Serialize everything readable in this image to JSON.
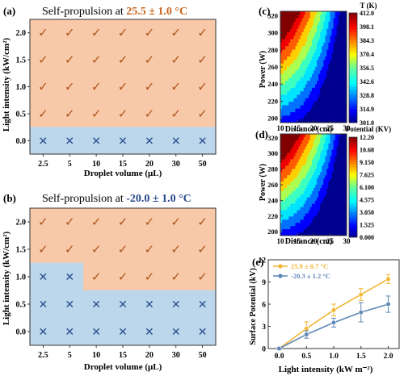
{
  "chart_data": [
    {
      "panel": "(a)",
      "type": "heatmap",
      "title_prefix": "Self-propulsion at ",
      "title_value": "25.5 ± 1.0 °C",
      "xlabel": "Droplet volume (μL)",
      "ylabel": "Light intensity (kW/cm²)",
      "x": [
        "2.5",
        "5",
        "10",
        "15",
        "20",
        "30",
        "50"
      ],
      "y": [
        "0.0",
        "0.5",
        "1.0",
        "1.5",
        "2.0"
      ],
      "outcome": [
        [
          "✕",
          "✕",
          "✕",
          "✕",
          "✕",
          "✕",
          "✕"
        ],
        [
          "✓",
          "✓",
          "✓",
          "✓",
          "✓",
          "✓",
          "✓"
        ],
        [
          "✓",
          "✓",
          "✓",
          "✓",
          "✓",
          "✓",
          "✓"
        ],
        [
          "✓",
          "✓",
          "✓",
          "✓",
          "✓",
          "✓",
          "✓"
        ],
        [
          "✓",
          "✓",
          "✓",
          "✓",
          "✓",
          "✓",
          "✓"
        ]
      ]
    },
    {
      "panel": "(b)",
      "type": "heatmap",
      "title_prefix": "Self-propulsion at ",
      "title_value": "-20.0 ± 1.0 °C",
      "xlabel": "Droplet volume (μL)",
      "ylabel": "Light intensity (kW/cm²)",
      "x": [
        "2.5",
        "5",
        "10",
        "15",
        "20",
        "30",
        "50"
      ],
      "y": [
        "0.0",
        "0.5",
        "1.0",
        "1.5",
        "2.0"
      ],
      "outcome": [
        [
          "✕",
          "✕",
          "✕",
          "✕",
          "✕",
          "✕",
          "✕"
        ],
        [
          "✕",
          "✕",
          "✕",
          "✕",
          "✕",
          "✕",
          "✕"
        ],
        [
          "✕",
          "✕",
          "✓",
          "✓",
          "✓",
          "✓",
          "✓"
        ],
        [
          "✓",
          "✓",
          "✓",
          "✓",
          "✓",
          "✓",
          "✓"
        ],
        [
          "✓",
          "✓",
          "✓",
          "✓",
          "✓",
          "✓",
          "✓"
        ]
      ]
    },
    {
      "panel": "(c)",
      "type": "heatmap",
      "colorbar_title": "T (K)",
      "xlabel": "Distance (cm)",
      "ylabel": "Power (W)",
      "xticks": [
        "10",
        "15",
        "20",
        "25",
        "30"
      ],
      "yticks": [
        "200",
        "220",
        "240",
        "260",
        "280",
        "300",
        "320"
      ],
      "xlim": [
        10,
        30
      ],
      "ylim": [
        195,
        325
      ],
      "colorbar_ticks": [
        "412.0",
        "398.1",
        "384.3",
        "370.4",
        "356.5",
        "342.6",
        "328.8",
        "314.9",
        "301.0"
      ],
      "range": [
        301.0,
        412.0
      ]
    },
    {
      "panel": "(d)",
      "type": "heatmap",
      "colorbar_title": "Potential (KV)",
      "xlabel": "Distance (cm)",
      "ylabel": "Power (W)",
      "xticks": [
        "10",
        "15",
        "20",
        "25",
        "30"
      ],
      "yticks": [
        "200",
        "220",
        "240",
        "260",
        "280",
        "300",
        "320"
      ],
      "xlim": [
        10,
        30
      ],
      "ylim": [
        195,
        325
      ],
      "colorbar_ticks": [
        "12.20",
        "10.68",
        "9.150",
        "7.625",
        "6.100",
        "4.575",
        "3.050",
        "1.525",
        "0.000"
      ],
      "range": [
        0.0,
        12.2
      ]
    },
    {
      "panel": "(e)",
      "type": "line",
      "xlabel": "Light intensity (kW m⁻²)",
      "ylabel": "Surface Potential (kV)",
      "x": [
        0.0,
        0.5,
        1.0,
        1.5,
        2.0
      ],
      "xticks": [
        "0.0",
        "0.5",
        "1.0",
        "1.5",
        "2.0"
      ],
      "yticks": [
        "0",
        "3",
        "6",
        "9",
        "12"
      ],
      "xlim": [
        -0.2,
        2.2
      ],
      "ylim": [
        0,
        12
      ],
      "series": [
        {
          "name": "25.9 ± 0.7 °C",
          "values": [
            0.0,
            2.7,
            5.2,
            7.3,
            9.4
          ],
          "errors": [
            0.2,
            0.9,
            0.8,
            0.8,
            0.6
          ],
          "color": "#f2b632"
        },
        {
          "name": "-20.3 ± 1.2 °C",
          "values": [
            0.0,
            1.9,
            3.5,
            4.9,
            6.0
          ],
          "errors": [
            0.2,
            0.5,
            0.6,
            1.3,
            1.1
          ],
          "color": "#5e87b6"
        }
      ]
    }
  ],
  "colors": {
    "success_bg": "#f7c9a8",
    "fail_bg": "#bcd6ec",
    "check": "#b0541c",
    "cross": "#2a4f8c",
    "warm_value": "#c8651e",
    "cold_value": "#27478a"
  }
}
